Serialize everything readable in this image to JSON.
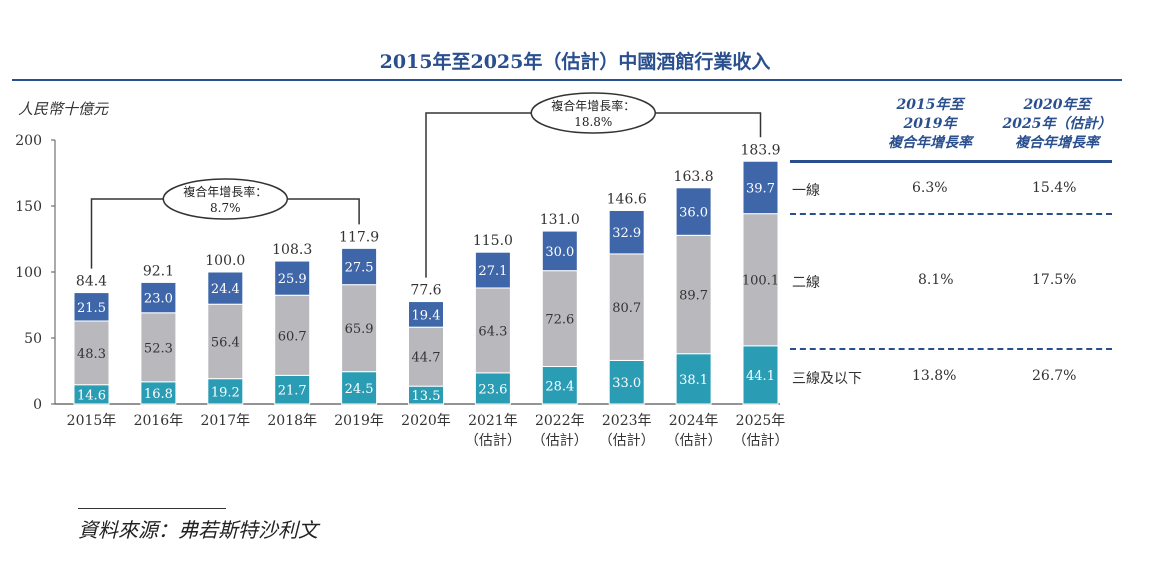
{
  "chart_data": {
    "type": "bar",
    "stacked": true,
    "title": "2015年至2025年（估計）中國酒館行業收入",
    "ylabel": "人民幣十億元",
    "ylim": [
      0,
      200
    ],
    "yticks": [
      "0",
      "50",
      "100",
      "150",
      "200"
    ],
    "categories": [
      {
        "line1": "2015年",
        "line2": ""
      },
      {
        "line1": "2016年",
        "line2": ""
      },
      {
        "line1": "2017年",
        "line2": ""
      },
      {
        "line1": "2018年",
        "line2": ""
      },
      {
        "line1": "2019年",
        "line2": ""
      },
      {
        "line1": "2020年",
        "line2": ""
      },
      {
        "line1": "2021年",
        "line2": "（估計）"
      },
      {
        "line1": "2022年",
        "line2": "（估計）"
      },
      {
        "line1": "2023年",
        "line2": "（估計）"
      },
      {
        "line1": "2024年",
        "line2": "（估計）"
      },
      {
        "line1": "2025年",
        "line2": "（估計）"
      }
    ],
    "series": [
      {
        "name": "三線及以下",
        "color": "#2a9db5",
        "values": [
          14.6,
          16.8,
          19.2,
          21.7,
          24.5,
          13.5,
          23.6,
          28.4,
          33.0,
          38.1,
          44.1
        ],
        "labels": [
          "14.6",
          "16.8",
          "19.2",
          "21.7",
          "24.5",
          "13.5",
          "23.6",
          "28.4",
          "33.0",
          "38.1",
          "44.1"
        ]
      },
      {
        "name": "二線",
        "color": "#b9b9bd",
        "values": [
          48.3,
          52.3,
          56.4,
          60.7,
          65.9,
          44.7,
          64.3,
          72.6,
          80.7,
          89.7,
          100.1
        ],
        "labels": [
          "48.3",
          "52.3",
          "56.4",
          "60.7",
          "65.9",
          "44.7",
          "64.3",
          "72.6",
          "80.7",
          "89.7",
          "100.1"
        ]
      },
      {
        "name": "一線",
        "color": "#3e66a8",
        "values": [
          21.5,
          23.0,
          24.4,
          25.9,
          27.5,
          19.4,
          27.1,
          30.0,
          32.9,
          36.0,
          39.7
        ],
        "labels": [
          "21.5",
          "23.0",
          "24.4",
          "25.9",
          "27.5",
          "19.4",
          "27.1",
          "30.0",
          "32.9",
          "36.0",
          "39.7"
        ]
      }
    ],
    "totals": [
      84.4,
      92.1,
      100.0,
      108.3,
      117.9,
      77.6,
      115.0,
      131.0,
      146.6,
      163.8,
      183.9
    ],
    "total_labels": [
      "84.4",
      "92.1",
      "100.0",
      "108.3",
      "117.9",
      "77.6",
      "115.0",
      "131.0",
      "146.6",
      "163.8",
      "183.9"
    ],
    "annotations": [
      {
        "text": "複合年增長率：",
        "value": "8.7%",
        "from": "2015年",
        "to": "2019年"
      },
      {
        "text": "複合年增長率：",
        "value": "18.8%",
        "from": "2020年",
        "to": "2025年（估計）"
      }
    ]
  },
  "table": {
    "header_col1": [
      "2015年至",
      "2019年",
      "複合年增長率"
    ],
    "header_col2": [
      "2020年至",
      "2025年（估計）",
      "複合年增長率"
    ],
    "rows": [
      {
        "tier": "一線",
        "cagr_2015_2019": "6.3%",
        "cagr_2020_2025": "15.4%"
      },
      {
        "tier": "二線",
        "cagr_2015_2019": "8.1%",
        "cagr_2020_2025": "17.5%"
      },
      {
        "tier": "三線及以下",
        "cagr_2015_2019": "13.8%",
        "cagr_2020_2025": "26.7%"
      }
    ]
  },
  "source": "資料來源：弗若斯特沙利文"
}
